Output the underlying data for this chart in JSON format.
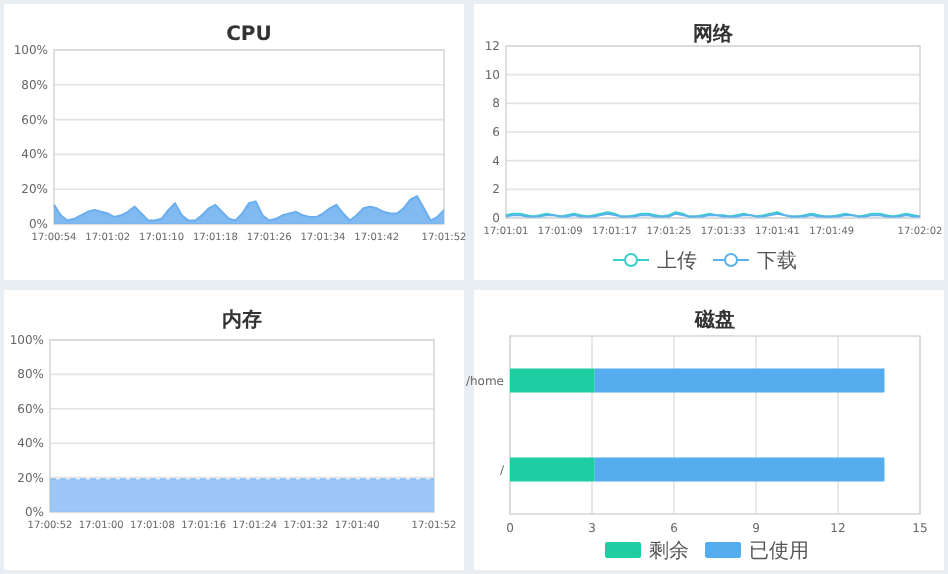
{
  "chart_data": [
    {
      "type": "area",
      "title": "CPU",
      "grid": "y",
      "ylim": [
        0,
        100
      ],
      "yticks": [
        {
          "value": 0,
          "label": "0%"
        },
        {
          "value": 20,
          "label": "20%"
        },
        {
          "value": 40,
          "label": "40%"
        },
        {
          "value": 60,
          "label": "60%"
        },
        {
          "value": 80,
          "label": "80%"
        },
        {
          "value": 100,
          "label": "100%"
        }
      ],
      "categories": [
        "17:00:54",
        null,
        null,
        null,
        null,
        null,
        null,
        null,
        "17:01:02",
        null,
        null,
        null,
        null,
        null,
        null,
        null,
        "17:01:10",
        null,
        null,
        null,
        null,
        null,
        null,
        null,
        "17:01:18",
        null,
        null,
        null,
        null,
        null,
        null,
        null,
        "17:01:26",
        null,
        null,
        null,
        null,
        null,
        null,
        null,
        "17:01:34",
        null,
        null,
        null,
        null,
        null,
        null,
        null,
        "17:01:42",
        null,
        null,
        null,
        null,
        null,
        null,
        null,
        null,
        null,
        "17:01:52"
      ],
      "series": [
        {
          "color": "#6aaeef",
          "values": [
            11,
            5,
            2,
            3,
            5,
            7,
            8,
            7,
            6,
            4,
            5,
            7,
            10,
            6,
            2,
            2,
            3,
            8,
            12,
            5,
            2,
            2,
            5,
            9,
            11,
            7,
            3,
            2,
            6,
            12,
            13,
            5,
            2,
            3,
            5,
            6,
            7,
            5,
            4,
            4,
            6,
            9,
            11,
            6,
            2,
            5,
            9,
            10,
            9,
            7,
            6,
            6,
            9,
            14,
            16,
            9,
            2,
            4,
            8
          ]
        }
      ]
    },
    {
      "type": "line",
      "title": "网络",
      "grid": "y",
      "legend": "bottom",
      "ylim": [
        0,
        12
      ],
      "yticks": [
        0,
        2,
        4,
        6,
        8,
        10,
        12
      ],
      "categories": [
        "17:01:01",
        null,
        null,
        null,
        null,
        null,
        null,
        null,
        "17:01:09",
        null,
        null,
        null,
        null,
        null,
        null,
        null,
        "17:01:17",
        null,
        null,
        null,
        null,
        null,
        null,
        null,
        "17:01:25",
        null,
        null,
        null,
        null,
        null,
        null,
        null,
        "17:01:33",
        null,
        null,
        null,
        null,
        null,
        null,
        null,
        "17:01:41",
        null,
        null,
        null,
        null,
        null,
        null,
        null,
        "17:01:49",
        null,
        null,
        null,
        null,
        null,
        null,
        null,
        null,
        null,
        null,
        null,
        null,
        "17:02:02"
      ],
      "series": [
        {
          "name": "上传",
          "color": "#36cfc9",
          "values": [
            0.2,
            0.3,
            0.3,
            0.2,
            0.1,
            0.2,
            0.3,
            0.2,
            0.1,
            0.2,
            0.3,
            0.2,
            0.1,
            0.2,
            0.3,
            0.4,
            0.3,
            0.1,
            0.1,
            0.2,
            0.3,
            0.3,
            0.2,
            0.1,
            0.2,
            0.4,
            0.3,
            0.1,
            0.1,
            0.2,
            0.3,
            0.2,
            0.2,
            0.1,
            0.2,
            0.3,
            0.2,
            0.1,
            0.2,
            0.3,
            0.4,
            0.2,
            0.1,
            0.1,
            0.2,
            0.3,
            0.2,
            0.1,
            0.1,
            0.2,
            0.3,
            0.2,
            0.1,
            0.2,
            0.3,
            0.3,
            0.2,
            0.1,
            0.2,
            0.3,
            0.2,
            0.1
          ]
        },
        {
          "name": "下载",
          "color": "#5ab1ef",
          "values": [
            0.1,
            0.2,
            0.2,
            0.1,
            0.1,
            0.1,
            0.2,
            0.2,
            0.1,
            0.1,
            0.2,
            0.1,
            0.1,
            0.1,
            0.2,
            0.3,
            0.2,
            0.1,
            0.1,
            0.1,
            0.2,
            0.2,
            0.1,
            0.1,
            0.1,
            0.3,
            0.2,
            0.1,
            0.1,
            0.1,
            0.2,
            0.2,
            0.1,
            0.1,
            0.1,
            0.2,
            0.2,
            0.1,
            0.1,
            0.2,
            0.3,
            0.2,
            0.1,
            0.1,
            0.1,
            0.2,
            0.1,
            0.1,
            0.1,
            0.1,
            0.2,
            0.2,
            0.1,
            0.1,
            0.2,
            0.2,
            0.1,
            0.1,
            0.1,
            0.2,
            0.1,
            0.1
          ]
        }
      ]
    },
    {
      "type": "area",
      "title": "内存",
      "grid": "y",
      "line_style": "dashed",
      "ylim": [
        0,
        100
      ],
      "yticks": [
        {
          "value": 0,
          "label": "0%"
        },
        {
          "value": 20,
          "label": "20%"
        },
        {
          "value": 40,
          "label": "40%"
        },
        {
          "value": 60,
          "label": "60%"
        },
        {
          "value": 80,
          "label": "80%"
        },
        {
          "value": 100,
          "label": "100%"
        }
      ],
      "categories": [
        "17:00:52",
        null,
        null,
        null,
        null,
        null,
        null,
        null,
        "17:01:00",
        null,
        null,
        null,
        null,
        null,
        null,
        null,
        "17:01:08",
        null,
        null,
        null,
        null,
        null,
        null,
        null,
        "17:01:16",
        null,
        null,
        null,
        null,
        null,
        null,
        null,
        "17:01:24",
        null,
        null,
        null,
        null,
        null,
        null,
        null,
        "17:01:32",
        null,
        null,
        null,
        null,
        null,
        null,
        null,
        "17:01:40",
        null,
        null,
        null,
        null,
        null,
        null,
        null,
        null,
        null,
        null,
        null,
        "17:01:52"
      ],
      "series": [
        {
          "color": "#8bbdf6",
          "values": [
            19,
            19,
            19,
            19,
            19,
            19,
            19,
            19,
            19,
            19,
            19,
            19,
            19,
            19,
            19,
            19,
            19,
            19,
            19,
            19,
            19,
            19,
            19,
            19,
            19,
            19,
            19,
            19,
            19,
            19,
            19,
            19,
            19,
            19,
            19,
            19,
            19,
            19,
            19,
            19,
            19,
            19,
            19,
            19,
            19,
            19,
            19,
            19,
            19,
            19,
            19,
            19,
            19,
            19,
            19,
            19,
            19,
            19,
            19,
            19,
            19
          ]
        }
      ]
    },
    {
      "type": "bar",
      "title": "磁盘",
      "orientation": "horizontal",
      "stacked": true,
      "grid": "x",
      "legend": "bottom",
      "xlim": [
        0,
        15
      ],
      "xticks": [
        0,
        3,
        6,
        9,
        12,
        15
      ],
      "categories": [
        "/home",
        "/"
      ],
      "series": [
        {
          "name": "剩余",
          "color": "#1fcda3",
          "values": [
            3.1,
            3.1
          ]
        },
        {
          "name": "已使用",
          "color": "#55acee",
          "values": [
            10.6,
            10.6
          ]
        }
      ]
    }
  ]
}
